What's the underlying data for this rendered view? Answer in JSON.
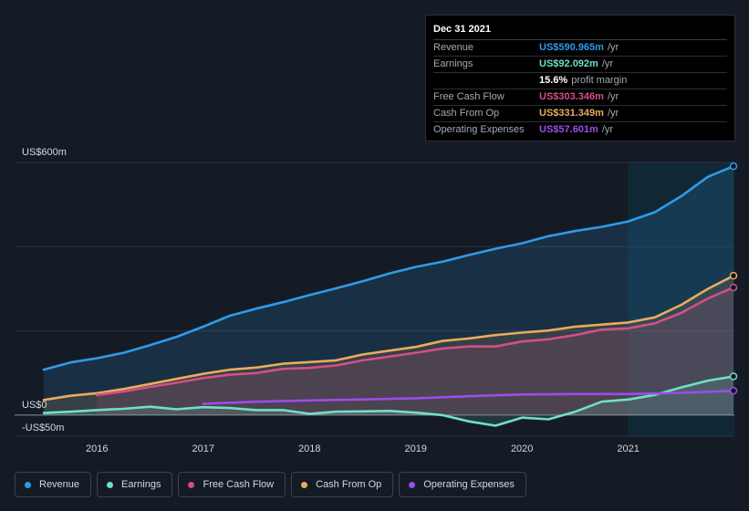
{
  "tooltip": {
    "date": "Dec 31 2021",
    "rows": [
      {
        "label": "Revenue",
        "value": "US$590.965m",
        "unit": "/yr",
        "color": "#2f9be8"
      },
      {
        "label": "Earnings",
        "value": "US$92.092m",
        "unit": "/yr",
        "color": "#6fe0c6"
      },
      {
        "label": "",
        "value": "15.6%",
        "unit": "profit margin",
        "color": "#ffffff"
      },
      {
        "label": "Free Cash Flow",
        "value": "US$303.346m",
        "unit": "/yr",
        "color": "#d44f86"
      },
      {
        "label": "Cash From Op",
        "value": "US$331.349m",
        "unit": "/yr",
        "color": "#e8ac5c"
      },
      {
        "label": "Operating Expenses",
        "value": "US$57.601m",
        "unit": "/yr",
        "color": "#9b4de8"
      }
    ]
  },
  "legend": [
    {
      "label": "Revenue",
      "color": "#2f9be8"
    },
    {
      "label": "Earnings",
      "color": "#6fe0c6"
    },
    {
      "label": "Free Cash Flow",
      "color": "#d44f86"
    },
    {
      "label": "Cash From Op",
      "color": "#e8ac5c"
    },
    {
      "label": "Operating Expenses",
      "color": "#9b4de8"
    }
  ],
  "chart_data": {
    "type": "area",
    "y_tick_labels": [
      "US$600m",
      "US$0",
      "-US$50m"
    ],
    "y_ticks": [
      600,
      0,
      -50
    ],
    "ylim": [
      -50,
      600
    ],
    "xlim": [
      2015.5,
      2021.99
    ],
    "x_tick_labels": [
      "2016",
      "2017",
      "2018",
      "2019",
      "2020",
      "2021"
    ],
    "x_ticks": [
      2016,
      2017,
      2018,
      2019,
      2020,
      2021
    ],
    "highlight_start": 2021.0,
    "grid": true,
    "series": [
      {
        "name": "Revenue",
        "color": "#2f9be8",
        "fill": true,
        "points": [
          [
            2015.5,
            108
          ],
          [
            2015.75,
            125
          ],
          [
            2016.0,
            135
          ],
          [
            2016.25,
            148
          ],
          [
            2016.5,
            166
          ],
          [
            2016.75,
            186
          ],
          [
            2017.0,
            210
          ],
          [
            2017.25,
            236
          ],
          [
            2017.5,
            253
          ],
          [
            2017.75,
            268
          ],
          [
            2018.0,
            285
          ],
          [
            2018.25,
            301
          ],
          [
            2018.5,
            318
          ],
          [
            2018.75,
            336
          ],
          [
            2019.0,
            352
          ],
          [
            2019.25,
            364
          ],
          [
            2019.5,
            380
          ],
          [
            2019.75,
            395
          ],
          [
            2020.0,
            408
          ],
          [
            2020.25,
            425
          ],
          [
            2020.5,
            437
          ],
          [
            2020.75,
            447
          ],
          [
            2021.0,
            460
          ],
          [
            2021.25,
            482
          ],
          [
            2021.5,
            520
          ],
          [
            2021.75,
            566
          ],
          [
            2021.99,
            591
          ]
        ]
      },
      {
        "name": "Cash From Op",
        "color": "#e8ac5c",
        "fill": true,
        "points": [
          [
            2015.5,
            36
          ],
          [
            2015.75,
            46
          ],
          [
            2016.0,
            52
          ],
          [
            2016.25,
            62
          ],
          [
            2016.5,
            74
          ],
          [
            2016.75,
            86
          ],
          [
            2017.0,
            98
          ],
          [
            2017.25,
            108
          ],
          [
            2017.5,
            113
          ],
          [
            2017.75,
            122
          ],
          [
            2018.0,
            126
          ],
          [
            2018.25,
            130
          ],
          [
            2018.5,
            144
          ],
          [
            2018.75,
            153
          ],
          [
            2019.0,
            162
          ],
          [
            2019.25,
            176
          ],
          [
            2019.5,
            182
          ],
          [
            2019.75,
            190
          ],
          [
            2020.0,
            196
          ],
          [
            2020.25,
            201
          ],
          [
            2020.5,
            210
          ],
          [
            2020.75,
            215
          ],
          [
            2021.0,
            220
          ],
          [
            2021.25,
            232
          ],
          [
            2021.5,
            262
          ],
          [
            2021.75,
            300
          ],
          [
            2021.99,
            331
          ]
        ]
      },
      {
        "name": "Free Cash Flow",
        "color": "#d44f86",
        "fill": true,
        "points": [
          [
            2016.0,
            48
          ],
          [
            2016.25,
            56
          ],
          [
            2016.5,
            67
          ],
          [
            2016.75,
            77
          ],
          [
            2017.0,
            88
          ],
          [
            2017.25,
            96
          ],
          [
            2017.5,
            100
          ],
          [
            2017.75,
            110
          ],
          [
            2018.0,
            112
          ],
          [
            2018.25,
            118
          ],
          [
            2018.5,
            130
          ],
          [
            2018.75,
            139
          ],
          [
            2019.0,
            148
          ],
          [
            2019.25,
            158
          ],
          [
            2019.5,
            163
          ],
          [
            2019.75,
            163
          ],
          [
            2020.0,
            175
          ],
          [
            2020.25,
            180
          ],
          [
            2020.5,
            190
          ],
          [
            2020.75,
            203
          ],
          [
            2021.0,
            206
          ],
          [
            2021.25,
            218
          ],
          [
            2021.5,
            243
          ],
          [
            2021.75,
            277
          ],
          [
            2021.99,
            303
          ]
        ]
      },
      {
        "name": "Earnings",
        "color": "#6fe0c6",
        "fill": true,
        "points": [
          [
            2015.5,
            5
          ],
          [
            2015.75,
            8
          ],
          [
            2016.0,
            12
          ],
          [
            2016.25,
            15
          ],
          [
            2016.5,
            20
          ],
          [
            2016.75,
            14
          ],
          [
            2017.0,
            19
          ],
          [
            2017.25,
            17
          ],
          [
            2017.5,
            12
          ],
          [
            2017.75,
            12
          ],
          [
            2018.0,
            3
          ],
          [
            2018.25,
            8
          ],
          [
            2018.5,
            9
          ],
          [
            2018.75,
            10
          ],
          [
            2019.0,
            6
          ],
          [
            2019.25,
            0
          ],
          [
            2019.5,
            -15
          ],
          [
            2019.75,
            -25
          ],
          [
            2020.0,
            -6
          ],
          [
            2020.25,
            -10
          ],
          [
            2020.5,
            8
          ],
          [
            2020.75,
            32
          ],
          [
            2021.0,
            37
          ],
          [
            2021.25,
            48
          ],
          [
            2021.5,
            66
          ],
          [
            2021.75,
            82
          ],
          [
            2021.99,
            92
          ]
        ]
      },
      {
        "name": "Operating Expenses",
        "color": "#9b4de8",
        "fill": false,
        "points": [
          [
            2017.0,
            27
          ],
          [
            2017.5,
            32
          ],
          [
            2018.0,
            35
          ],
          [
            2018.5,
            37
          ],
          [
            2019.0,
            40
          ],
          [
            2019.5,
            45
          ],
          [
            2020.0,
            49
          ],
          [
            2020.5,
            50
          ],
          [
            2021.0,
            50
          ],
          [
            2021.5,
            53
          ],
          [
            2021.99,
            58
          ]
        ]
      }
    ]
  }
}
